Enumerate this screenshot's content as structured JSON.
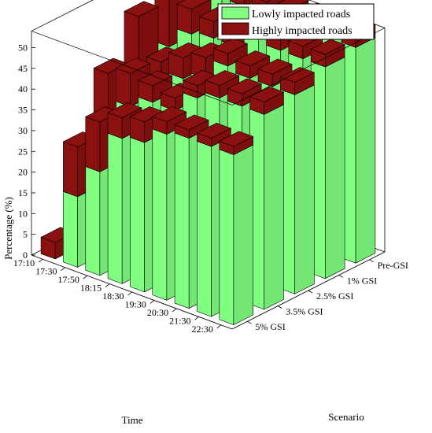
{
  "chart_data": {
    "type": "bar3d-stacked",
    "title": "",
    "xlabel": "Time",
    "ylabel": "Scenario",
    "zlabel": "Percentage (%)",
    "zlim": [
      0,
      50
    ],
    "zticks": [
      0,
      5,
      10,
      15,
      20,
      25,
      30,
      35,
      40,
      45,
      50
    ],
    "grid": false,
    "legend": {
      "position": "top-right"
    },
    "times": [
      "22:30",
      "21:30",
      "20:30",
      "19:30",
      "18:30",
      "18:15",
      "17:50",
      "17:30",
      "17:10"
    ],
    "scenarios": [
      "5% GSI",
      "3.5% GSI",
      "2.5% GSI",
      "1% GSI",
      "Pre-GSI"
    ],
    "series": [
      {
        "name": "Lowly impacted roads",
        "color": "#80ff80",
        "values": [
          [
            41,
            41,
            41,
            40,
            36,
            35,
            25,
            17,
            0
          ],
          [
            47,
            47,
            47,
            45,
            40,
            40,
            37,
            30,
            8
          ],
          [
            48,
            48,
            48,
            49,
            44,
            42,
            36,
            40,
            13
          ],
          [
            51,
            51,
            51,
            52,
            48,
            48,
            47,
            42,
            22
          ],
          [
            52,
            52,
            52,
            52,
            52,
            52,
            52,
            50,
            46
          ]
        ]
      },
      {
        "name": "Highly impacted roads",
        "color": "#8b1010",
        "values": [
          [
            2,
            2,
            2,
            3,
            5,
            5,
            12,
            12,
            4
          ],
          [
            3,
            3,
            3,
            3,
            3,
            4,
            8,
            13,
            3
          ],
          [
            3,
            3,
            3,
            3,
            5,
            5,
            8,
            13,
            3
          ],
          [
            3,
            3,
            3,
            3,
            4,
            4,
            6,
            13,
            3
          ],
          [
            3,
            3,
            3,
            3,
            3,
            4,
            5,
            12,
            3
          ]
        ]
      }
    ]
  }
}
